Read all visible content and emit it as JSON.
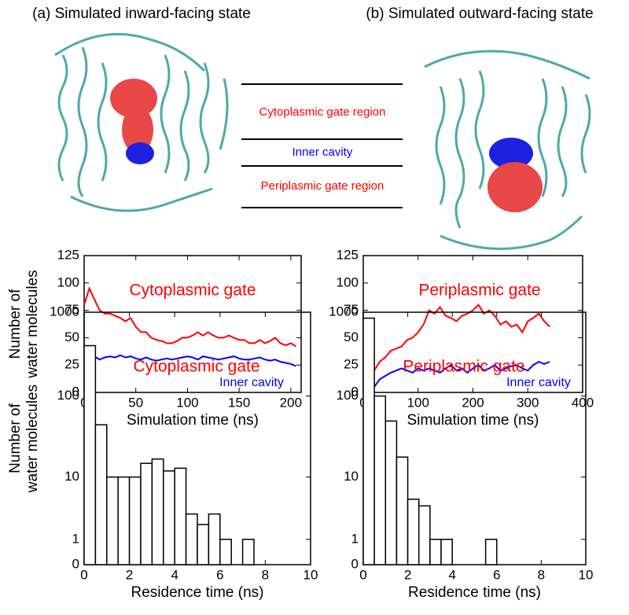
{
  "panels": [
    {
      "title": "(a) Simulated inward-facing state"
    },
    {
      "title": "(b) Simulated outward-facing state"
    }
  ],
  "regions": [
    {
      "label": "Cytoplasmic gate region",
      "color": "#ff0000"
    },
    {
      "label": "Inner cavity",
      "color": "#0000ff"
    },
    {
      "label": "Periplasmic gate region",
      "color": "#ff0000"
    }
  ],
  "chart_data": [
    {
      "type": "line",
      "ylabel": [
        "Number of",
        "water molecules"
      ],
      "xlabel": "Simulation time (ns)",
      "xlim": [
        0,
        210
      ],
      "xticks": [
        0,
        50,
        100,
        150,
        200
      ],
      "ylim": [
        0,
        125
      ],
      "yticks": [
        0,
        25,
        50,
        75,
        100,
        125
      ],
      "x": [
        0,
        5,
        10,
        15,
        20,
        25,
        30,
        35,
        40,
        45,
        50,
        55,
        60,
        65,
        70,
        75,
        80,
        85,
        90,
        95,
        100,
        105,
        110,
        115,
        120,
        125,
        130,
        135,
        140,
        145,
        150,
        155,
        160,
        165,
        170,
        175,
        180,
        185,
        190,
        195,
        200,
        205
      ],
      "series": [
        {
          "name": "Cytoplasmic gate",
          "color": "#ff0000",
          "values": [
            80,
            95,
            85,
            75,
            72,
            72,
            70,
            68,
            65,
            68,
            60,
            55,
            55,
            50,
            48,
            47,
            45,
            45,
            47,
            50,
            50,
            52,
            55,
            52,
            55,
            52,
            50,
            50,
            52,
            50,
            48,
            48,
            45,
            45,
            48,
            45,
            47,
            50,
            45,
            43,
            45,
            42
          ]
        },
        {
          "name": "Inner cavity",
          "color": "#0000ff",
          "values": [
            30,
            35,
            33,
            30,
            32,
            33,
            32,
            34,
            32,
            33,
            31,
            30,
            32,
            30,
            29,
            30,
            31,
            30,
            31,
            32,
            33,
            32,
            30,
            33,
            32,
            31,
            30,
            31,
            32,
            33,
            31,
            30,
            30,
            31,
            32,
            30,
            29,
            30,
            28,
            27,
            26,
            24
          ]
        }
      ]
    },
    {
      "type": "line",
      "xlabel": "Simulation time (ns)",
      "xlim": [
        0,
        400
      ],
      "xticks": [
        0,
        100,
        200,
        300,
        400
      ],
      "ylim": [
        0,
        125
      ],
      "yticks": [
        0,
        25,
        50,
        75,
        100,
        125
      ],
      "x": [
        10,
        20,
        30,
        40,
        50,
        60,
        70,
        80,
        90,
        100,
        110,
        120,
        130,
        140,
        150,
        160,
        170,
        180,
        190,
        200,
        210,
        220,
        230,
        240,
        250,
        260,
        270,
        280,
        290,
        300,
        310,
        320,
        330,
        340
      ],
      "series": [
        {
          "name": "Periplasmic gate",
          "color": "#ff0000",
          "values": [
            2,
            20,
            28,
            32,
            38,
            40,
            42,
            48,
            50,
            55,
            62,
            75,
            72,
            78,
            70,
            68,
            65,
            70,
            72,
            75,
            80,
            72,
            75,
            70,
            62,
            65,
            60,
            62,
            55,
            65,
            68,
            72,
            65,
            60
          ]
        },
        {
          "name": "Inner cavity",
          "color": "#0000ff",
          "values": [
            null,
            5,
            12,
            15,
            18,
            20,
            22,
            20,
            18,
            22,
            20,
            22,
            20,
            18,
            22,
            25,
            20,
            22,
            18,
            22,
            25,
            20,
            22,
            25,
            20,
            22,
            24,
            25,
            22,
            20,
            25,
            28,
            26,
            28
          ]
        }
      ]
    },
    {
      "type": "histogram",
      "ylabel": [
        "Number of",
        "water molecules"
      ],
      "xlabel": "Residence time (ns)",
      "annotation": "Cytoplasmic gate",
      "annotation_color": "#ff0000",
      "yscale": "log1p",
      "color": "#000000",
      "xlim": [
        0,
        10
      ],
      "xticks": [
        0,
        2,
        4,
        6,
        8,
        10
      ],
      "ylim": [
        0,
        1000
      ],
      "yticks": [
        0,
        1,
        10,
        100,
        1000
      ],
      "bins": [
        0,
        0.5,
        1,
        1.5,
        2,
        2.5,
        3,
        3.5,
        4,
        4.5,
        5,
        5.5,
        6,
        6.5,
        7,
        7.5
      ],
      "values": [
        400,
        45,
        10,
        10,
        10,
        15,
        17,
        12,
        13,
        3,
        2,
        3,
        1,
        0,
        1
      ]
    },
    {
      "type": "histogram",
      "xlabel": "Residence time (ns)",
      "annotation": "Periplasmic gate",
      "annotation_color": "#ff0000",
      "yscale": "log1p",
      "color": "#000000",
      "xlim": [
        0,
        10
      ],
      "xticks": [
        0,
        2,
        4,
        6,
        8,
        10
      ],
      "ylim": [
        0,
        1000
      ],
      "yticks": [
        0,
        1,
        10,
        100,
        1000
      ],
      "bins": [
        0,
        0.5,
        1,
        1.5,
        2,
        2.5,
        3,
        3.5,
        4,
        4.5,
        5,
        5.5,
        6
      ],
      "values": [
        850,
        100,
        50,
        18,
        5,
        4,
        1,
        1,
        0,
        0,
        0,
        1
      ]
    }
  ]
}
